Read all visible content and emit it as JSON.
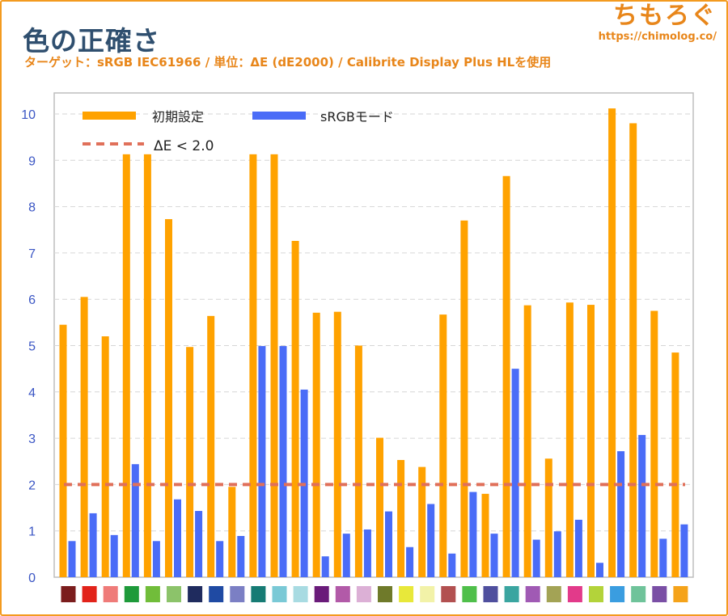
{
  "header": {
    "title": "色の正確さ",
    "subtitle": "ターゲット：sRGB IEC61966 / 単位：ΔE (dE2000) / Calibrite Display Plus HLを使用",
    "brand_name": "ちもろぐ",
    "brand_url": "https://chimolog.co/"
  },
  "colors": {
    "frame": "#f39a1f",
    "series_initial": "#ffa200",
    "series_srgb": "#4a6cf7",
    "threshold": "#e0705a",
    "axis_text": "#3b56c4",
    "grid": "#d6d6d6"
  },
  "chart_data": {
    "type": "bar",
    "ylim": [
      0,
      10
    ],
    "yticks": [
      0,
      1,
      2,
      3,
      4,
      5,
      6,
      7,
      8,
      9,
      10
    ],
    "grid": true,
    "legend_position": "top-left",
    "series": [
      {
        "name": "初期設定",
        "color": "#ffa200",
        "values": [
          5.45,
          6.05,
          5.2,
          9.13,
          9.13,
          7.73,
          4.97,
          5.64,
          1.95,
          9.13,
          9.13,
          7.26,
          5.71,
          5.73,
          5.0,
          3.01,
          2.53,
          2.38,
          5.67,
          7.7,
          1.8,
          8.66,
          5.87,
          2.56,
          5.93,
          5.88,
          10.12,
          9.8,
          5.75,
          4.85
        ]
      },
      {
        "name": "sRGBモード",
        "color": "#4a6cf7",
        "values": [
          0.78,
          1.38,
          0.91,
          2.44,
          0.78,
          1.68,
          1.43,
          0.78,
          0.89,
          4.99,
          4.99,
          4.05,
          0.45,
          0.94,
          1.03,
          1.42,
          0.65,
          1.58,
          0.51,
          1.84,
          0.94,
          4.5,
          0.81,
          0.99,
          1.24,
          0.31,
          2.72,
          3.07,
          0.83,
          1.14
        ]
      }
    ],
    "threshold": {
      "label": "ΔE < 2.0",
      "value": 2.0,
      "color": "#e0705a",
      "style": "dashed"
    },
    "category_swatches": [
      "#7b1d1d",
      "#e2231a",
      "#ef7b79",
      "#1e9a3a",
      "#71bd3a",
      "#8cc36a",
      "#1f2b5e",
      "#1f4aa3",
      "#7b7fc4",
      "#167b74",
      "#7ac9d6",
      "#a8dbe2",
      "#6a1b7a",
      "#b25aa8",
      "#dcb0d6",
      "#6f7a2a",
      "#e8e83a",
      "#f2f2a8",
      "#b25050",
      "#4fbf4a",
      "#4f4f9e",
      "#3aa5a0",
      "#a05ab4",
      "#a3a355",
      "#e23a8a",
      "#b3d33a",
      "#3a9de0",
      "#6fc39a",
      "#7a4fa5",
      "#f5a31a"
    ]
  }
}
